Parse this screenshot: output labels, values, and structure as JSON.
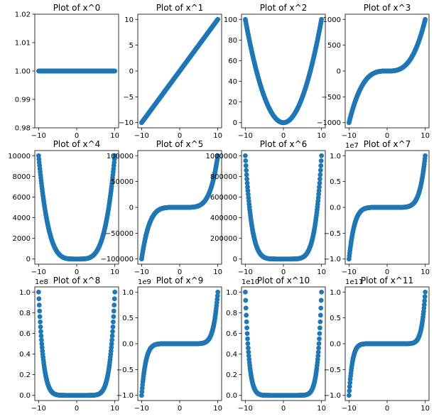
{
  "figure": {
    "background": "#ffffff",
    "marker_color": "#1f77b4"
  },
  "chart_data": [
    {
      "type": "scatter",
      "title": "Plot of x^0",
      "power": 0,
      "x_range": [
        -10,
        10
      ],
      "xlim": [
        -11,
        11
      ],
      "ylim": [
        0.98,
        1.02
      ],
      "x_ticks": [
        -10,
        0,
        10
      ],
      "y_ticks": [
        0.98,
        0.99,
        1.0,
        1.01,
        1.02
      ],
      "y_tick_labels": [
        "0.98",
        "0.99",
        "1.00",
        "1.01",
        "1.02"
      ],
      "y_offset": ""
    },
    {
      "type": "scatter",
      "title": "Plot of x^1",
      "power": 1,
      "x_range": [
        -10,
        10
      ],
      "xlim": [
        -11,
        11
      ],
      "ylim": [
        -11,
        11
      ],
      "x_ticks": [
        -10,
        0,
        10
      ],
      "y_ticks": [
        -10,
        -5,
        0,
        5,
        10
      ],
      "y_tick_labels": [
        "−10",
        "−5",
        "0",
        "5",
        "10"
      ],
      "y_offset": ""
    },
    {
      "type": "scatter",
      "title": "Plot of x^2",
      "power": 2,
      "x_range": [
        -10,
        10
      ],
      "xlim": [
        -11,
        11
      ],
      "ylim": [
        -5,
        105
      ],
      "x_ticks": [
        -10,
        0,
        10
      ],
      "y_ticks": [
        0,
        20,
        40,
        60,
        80,
        100
      ],
      "y_tick_labels": [
        "0",
        "20",
        "40",
        "60",
        "80",
        "100"
      ],
      "y_offset": ""
    },
    {
      "type": "scatter",
      "title": "Plot of x^3",
      "power": 3,
      "x_range": [
        -10,
        10
      ],
      "xlim": [
        -11,
        11
      ],
      "ylim": [
        -1100,
        1100
      ],
      "x_ticks": [
        -10,
        0,
        10
      ],
      "y_ticks": [
        -1000,
        -500,
        0,
        500,
        1000
      ],
      "y_tick_labels": [
        "−1000",
        "−500",
        "0",
        "500",
        "1000"
      ],
      "y_offset": ""
    },
    {
      "type": "scatter",
      "title": "Plot of x^4",
      "power": 4,
      "x_range": [
        -10,
        10
      ],
      "xlim": [
        -11,
        11
      ],
      "ylim": [
        -500,
        10500
      ],
      "x_ticks": [
        -10,
        0,
        10
      ],
      "y_ticks": [
        0,
        2000,
        4000,
        6000,
        8000,
        10000
      ],
      "y_tick_labels": [
        "0",
        "2000",
        "4000",
        "6000",
        "8000",
        "10000"
      ],
      "y_offset": ""
    },
    {
      "type": "scatter",
      "title": "Plot of x^5",
      "power": 5,
      "x_range": [
        -10,
        10
      ],
      "xlim": [
        -11,
        11
      ],
      "ylim": [
        -110000,
        110000
      ],
      "x_ticks": [
        -10,
        0,
        10
      ],
      "y_ticks": [
        -100000,
        -50000,
        0,
        50000,
        100000
      ],
      "y_tick_labels": [
        "−100000",
        "−50000",
        "0",
        "50000",
        "100000"
      ],
      "y_offset": ""
    },
    {
      "type": "scatter",
      "title": "Plot of x^6",
      "power": 6,
      "x_range": [
        -10,
        10
      ],
      "xlim": [
        -11,
        11
      ],
      "ylim": [
        -50000,
        1050000
      ],
      "x_ticks": [
        -10,
        0,
        10
      ],
      "y_ticks": [
        0,
        200000,
        400000,
        600000,
        800000,
        1000000
      ],
      "y_tick_labels": [
        "0",
        "200000",
        "400000",
        "600000",
        "800000",
        "1000000"
      ],
      "y_offset": ""
    },
    {
      "type": "scatter",
      "title": "Plot of x^7",
      "power": 7,
      "x_range": [
        -10,
        10
      ],
      "xlim": [
        -11,
        11
      ],
      "ylim": [
        -11000000,
        11000000
      ],
      "x_ticks": [
        -10,
        0,
        10
      ],
      "y_ticks": [
        -10000000,
        -5000000,
        0,
        5000000,
        10000000
      ],
      "y_tick_labels": [
        "−1.0",
        "−0.5",
        "0.0",
        "0.5",
        "1.0"
      ],
      "y_offset": "1e7"
    },
    {
      "type": "scatter",
      "title": "Plot of x^8",
      "power": 8,
      "x_range": [
        -10,
        10
      ],
      "xlim": [
        -11,
        11
      ],
      "ylim": [
        -5000000,
        105000000
      ],
      "x_ticks": [
        -10,
        0,
        10
      ],
      "y_ticks": [
        0,
        20000000,
        40000000,
        60000000,
        80000000,
        100000000
      ],
      "y_tick_labels": [
        "0.0",
        "0.2",
        "0.4",
        "0.6",
        "0.8",
        "1.0"
      ],
      "y_offset": "1e8"
    },
    {
      "type": "scatter",
      "title": "Plot of x^9",
      "power": 9,
      "x_range": [
        -10,
        10
      ],
      "xlim": [
        -11,
        11
      ],
      "ylim": [
        -1100000000,
        1100000000
      ],
      "x_ticks": [
        -10,
        0,
        10
      ],
      "y_ticks": [
        -1000000000,
        -500000000,
        0,
        500000000,
        1000000000
      ],
      "y_tick_labels": [
        "−1.0",
        "−0.5",
        "0.0",
        "0.5",
        "1.0"
      ],
      "y_offset": "1e9"
    },
    {
      "type": "scatter",
      "title": "Plot of x^10",
      "power": 10,
      "x_range": [
        -10,
        10
      ],
      "xlim": [
        -11,
        11
      ],
      "ylim": [
        -500000000,
        10500000000
      ],
      "x_ticks": [
        -10,
        0,
        10
      ],
      "y_ticks": [
        0,
        2000000000,
        4000000000,
        6000000000,
        8000000000,
        10000000000
      ],
      "y_tick_labels": [
        "0.0",
        "0.2",
        "0.4",
        "0.6",
        "0.8",
        "1.0"
      ],
      "y_offset": "1e10"
    },
    {
      "type": "scatter",
      "title": "Plot of x^11",
      "power": 11,
      "x_range": [
        -10,
        10
      ],
      "xlim": [
        -11,
        11
      ],
      "ylim": [
        -110000000000,
        110000000000
      ],
      "x_ticks": [
        -10,
        0,
        10
      ],
      "y_ticks": [
        -100000000000,
        -50000000000,
        0,
        50000000000,
        100000000000
      ],
      "y_tick_labels": [
        "−1.0",
        "−0.5",
        "0.0",
        "0.5",
        "1.0"
      ],
      "y_offset": "1e11"
    }
  ]
}
